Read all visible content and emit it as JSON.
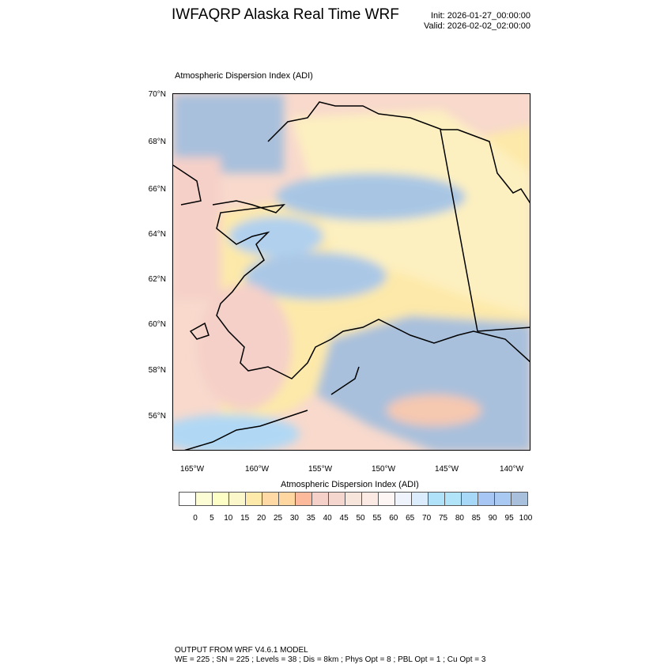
{
  "header": {
    "title": "IWFAQRP Alaska Real Time WRF",
    "init": "Init: 2026-01-27_00:00:00",
    "valid": "Valid: 2026-02-02_02:00:00"
  },
  "plot": {
    "subtitle": "Atmospheric Dispersion Index   (ADI)",
    "lat_labels": [
      "70°N",
      "68°N",
      "66°N",
      "64°N",
      "62°N",
      "60°N",
      "58°N",
      "56°N"
    ],
    "lon_labels": [
      "165°W",
      "160°W",
      "155°W",
      "150°W",
      "145°W",
      "140°W"
    ]
  },
  "colorbar": {
    "title": "Atmospheric Dispersion Index  (ADI)",
    "labels": [
      "0",
      "5",
      "10",
      "15",
      "20",
      "25",
      "30",
      "35",
      "40",
      "45",
      "50",
      "55",
      "60",
      "65",
      "70",
      "75",
      "80",
      "85",
      "90",
      "95",
      "100"
    ],
    "colors": [
      "#ffffff",
      "#fdfdd5",
      "#fdfdc6",
      "#fbf7cb",
      "#fde9a9",
      "#fed9a5",
      "#fed7a0",
      "#fdb99b",
      "#f5d0c8",
      "#f5d6ce",
      "#f7e4da",
      "#fbe9e3",
      "#fdf4f4",
      "#eef3fc",
      "#dbecfc",
      "#b0e2f9",
      "#b2e4f9",
      "#a8d8f7",
      "#a8c6f4",
      "#a9c8f2",
      "#a8c0dc"
    ]
  },
  "footer": {
    "line1": "OUTPUT FROM WRF V4.6.1 MODEL",
    "line2": "WE = 225 ; SN = 225 ; Levels = 38 ; Dis = 8km ; Phys Opt = 8 ; PBL Opt = 1 ; Cu Opt = 3"
  }
}
